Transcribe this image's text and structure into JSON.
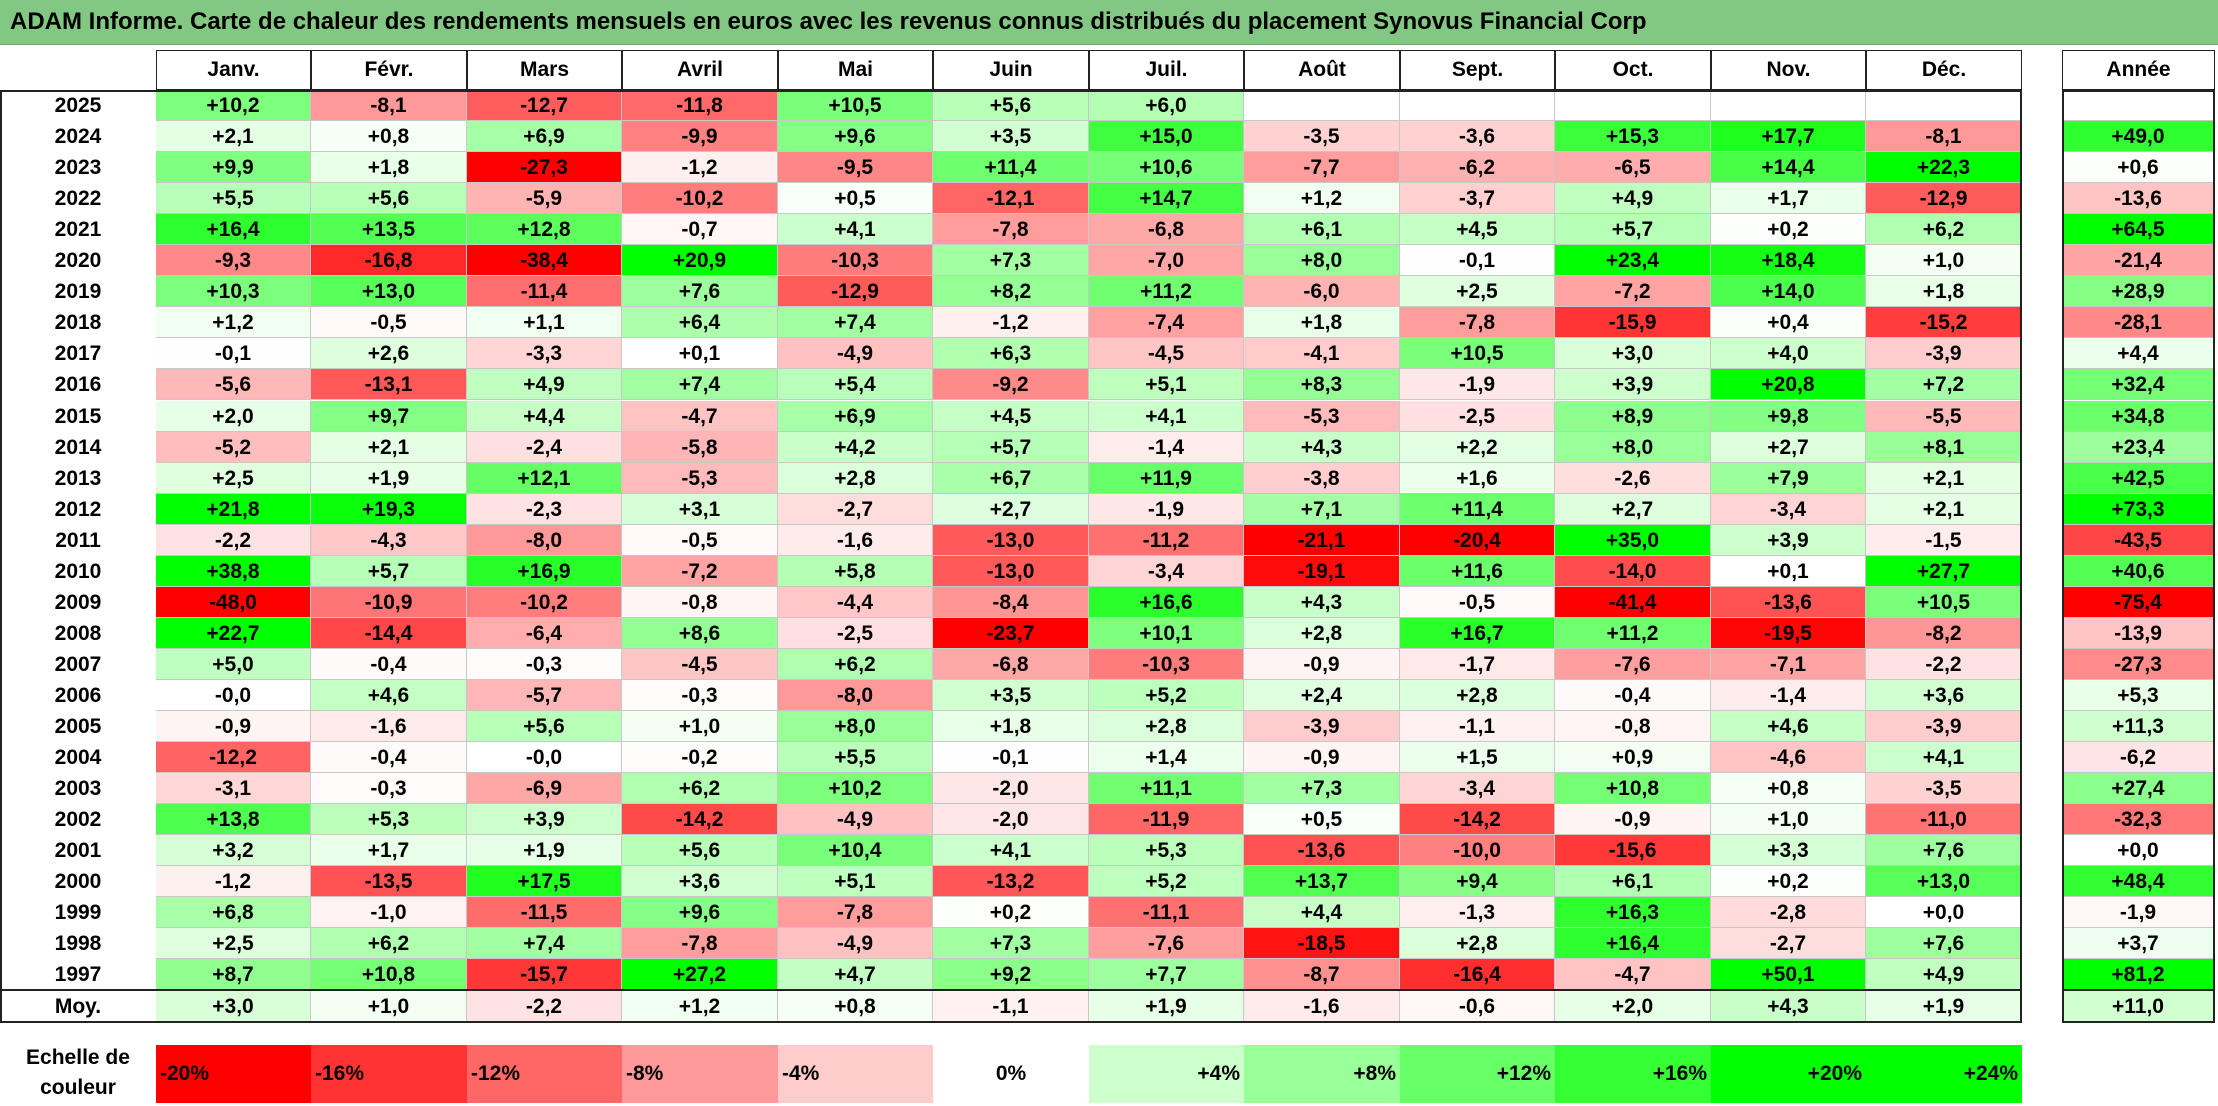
{
  "title": "ADAM Informe. Carte de chaleur des rendements mensuels en euros avec les revenus connus distribués du placement Synovus Financial Corp",
  "colors": {
    "title_bg": "#82c882",
    "negative_max": "#ff0000",
    "neutral": "#ffffff",
    "positive_max": "#00ff00"
  },
  "chart_data": {
    "type": "heatmap",
    "columns": [
      "Janv.",
      "Févr.",
      "Mars",
      "Avril",
      "Mai",
      "Juin",
      "Juil.",
      "Août",
      "Sept.",
      "Oct.",
      "Nov.",
      "Déc."
    ],
    "annual_header": "Année",
    "rows": [
      {
        "year": "2025",
        "values": [
          "+10,2",
          "-8,1",
          "-12,7",
          "-11,8",
          "+10,5",
          "+5,6",
          "+6,0",
          "",
          "",
          "",
          "",
          ""
        ],
        "annual": ""
      },
      {
        "year": "2024",
        "values": [
          "+2,1",
          "+0,8",
          "+6,9",
          "-9,9",
          "+9,6",
          "+3,5",
          "+15,0",
          "-3,5",
          "-3,6",
          "+15,3",
          "+17,7",
          "-8,1"
        ],
        "annual": "+49,0"
      },
      {
        "year": "2023",
        "values": [
          "+9,9",
          "+1,8",
          "-27,3",
          "-1,2",
          "-9,5",
          "+11,4",
          "+10,6",
          "-7,7",
          "-6,2",
          "-6,5",
          "+14,4",
          "+22,3"
        ],
        "annual": "+0,6"
      },
      {
        "year": "2022",
        "values": [
          "+5,5",
          "+5,6",
          "-5,9",
          "-10,2",
          "+0,5",
          "-12,1",
          "+14,7",
          "+1,2",
          "-3,7",
          "+4,9",
          "+1,7",
          "-12,9"
        ],
        "annual": "-13,6"
      },
      {
        "year": "2021",
        "values": [
          "+16,4",
          "+13,5",
          "+12,8",
          "-0,7",
          "+4,1",
          "-7,8",
          "-6,8",
          "+6,1",
          "+4,5",
          "+5,7",
          "+0,2",
          "+6,2"
        ],
        "annual": "+64,5"
      },
      {
        "year": "2020",
        "values": [
          "-9,3",
          "-16,8",
          "-38,4",
          "+20,9",
          "-10,3",
          "+7,3",
          "-7,0",
          "+8,0",
          "-0,1",
          "+23,4",
          "+18,4",
          "+1,0"
        ],
        "annual": "-21,4"
      },
      {
        "year": "2019",
        "values": [
          "+10,3",
          "+13,0",
          "-11,4",
          "+7,6",
          "-12,9",
          "+8,2",
          "+11,2",
          "-6,0",
          "+2,5",
          "-7,2",
          "+14,0",
          "+1,8"
        ],
        "annual": "+28,9"
      },
      {
        "year": "2018",
        "values": [
          "+1,2",
          "-0,5",
          "+1,1",
          "+6,4",
          "+7,4",
          "-1,2",
          "-7,4",
          "+1,8",
          "-7,8",
          "-15,9",
          "+0,4",
          "-15,2"
        ],
        "annual": "-28,1"
      },
      {
        "year": "2017",
        "values": [
          "-0,1",
          "+2,6",
          "-3,3",
          "+0,1",
          "-4,9",
          "+6,3",
          "-4,5",
          "-4,1",
          "+10,5",
          "+3,0",
          "+4,0",
          "-3,9"
        ],
        "annual": "+4,4"
      },
      {
        "year": "2016",
        "values": [
          "-5,6",
          "-13,1",
          "+4,9",
          "+7,4",
          "+5,4",
          "-9,2",
          "+5,1",
          "+8,3",
          "-1,9",
          "+3,9",
          "+20,8",
          "+7,2"
        ],
        "annual": "+32,4"
      },
      {
        "year": "2015",
        "values": [
          "+2,0",
          "+9,7",
          "+4,4",
          "-4,7",
          "+6,9",
          "+4,5",
          "+4,1",
          "-5,3",
          "-2,5",
          "+8,9",
          "+9,8",
          "-5,5"
        ],
        "annual": "+34,8"
      },
      {
        "year": "2014",
        "values": [
          "-5,2",
          "+2,1",
          "-2,4",
          "-5,8",
          "+4,2",
          "+5,7",
          "-1,4",
          "+4,3",
          "+2,2",
          "+8,0",
          "+2,7",
          "+8,1"
        ],
        "annual": "+23,4"
      },
      {
        "year": "2013",
        "values": [
          "+2,5",
          "+1,9",
          "+12,1",
          "-5,3",
          "+2,8",
          "+6,7",
          "+11,9",
          "-3,8",
          "+1,6",
          "-2,6",
          "+7,9",
          "+2,1"
        ],
        "annual": "+42,5"
      },
      {
        "year": "2012",
        "values": [
          "+21,8",
          "+19,3",
          "-2,3",
          "+3,1",
          "-2,7",
          "+2,7",
          "-1,9",
          "+7,1",
          "+11,4",
          "+2,7",
          "-3,4",
          "+2,1"
        ],
        "annual": "+73,3"
      },
      {
        "year": "2011",
        "values": [
          "-2,2",
          "-4,3",
          "-8,0",
          "-0,5",
          "-1,6",
          "-13,0",
          "-11,2",
          "-21,1",
          "-20,4",
          "+35,0",
          "+3,9",
          "-1,5"
        ],
        "annual": "-43,5"
      },
      {
        "year": "2010",
        "values": [
          "+38,8",
          "+5,7",
          "+16,9",
          "-7,2",
          "+5,8",
          "-13,0",
          "-3,4",
          "-19,1",
          "+11,6",
          "-14,0",
          "+0,1",
          "+27,7"
        ],
        "annual": "+40,6"
      },
      {
        "year": "2009",
        "values": [
          "-48,0",
          "-10,9",
          "-10,2",
          "-0,8",
          "-4,4",
          "-8,4",
          "+16,6",
          "+4,3",
          "-0,5",
          "-41,4",
          "-13,6",
          "+10,5"
        ],
        "annual": "-75,4"
      },
      {
        "year": "2008",
        "values": [
          "+22,7",
          "-14,4",
          "-6,4",
          "+8,6",
          "-2,5",
          "-23,7",
          "+10,1",
          "+2,8",
          "+16,7",
          "+11,2",
          "-19,5",
          "-8,2"
        ],
        "annual": "-13,9"
      },
      {
        "year": "2007",
        "values": [
          "+5,0",
          "-0,4",
          "-0,3",
          "-4,5",
          "+6,2",
          "-6,8",
          "-10,3",
          "-0,9",
          "-1,7",
          "-7,6",
          "-7,1",
          "-2,2"
        ],
        "annual": "-27,3"
      },
      {
        "year": "2006",
        "values": [
          "-0,0",
          "+4,6",
          "-5,7",
          "-0,3",
          "-8,0",
          "+3,5",
          "+5,2",
          "+2,4",
          "+2,8",
          "-0,4",
          "-1,4",
          "+3,6"
        ],
        "annual": "+5,3"
      },
      {
        "year": "2005",
        "values": [
          "-0,9",
          "-1,6",
          "+5,6",
          "+1,0",
          "+8,0",
          "+1,8",
          "+2,8",
          "-3,9",
          "-1,1",
          "-0,8",
          "+4,6",
          "-3,9"
        ],
        "annual": "+11,3"
      },
      {
        "year": "2004",
        "values": [
          "-12,2",
          "-0,4",
          "-0,0",
          "-0,2",
          "+5,5",
          "-0,1",
          "+1,4",
          "-0,9",
          "+1,5",
          "+0,9",
          "-4,6",
          "+4,1"
        ],
        "annual": "-6,2"
      },
      {
        "year": "2003",
        "values": [
          "-3,1",
          "-0,3",
          "-6,9",
          "+6,2",
          "+10,2",
          "-2,0",
          "+11,1",
          "+7,3",
          "-3,4",
          "+10,8",
          "+0,8",
          "-3,5"
        ],
        "annual": "+27,4"
      },
      {
        "year": "2002",
        "values": [
          "+13,8",
          "+5,3",
          "+3,9",
          "-14,2",
          "-4,9",
          "-2,0",
          "-11,9",
          "+0,5",
          "-14,2",
          "-0,9",
          "+1,0",
          "-11,0"
        ],
        "annual": "-32,3"
      },
      {
        "year": "2001",
        "values": [
          "+3,2",
          "+1,7",
          "+1,9",
          "+5,6",
          "+10,4",
          "+4,1",
          "+5,3",
          "-13,6",
          "-10,0",
          "-15,6",
          "+3,3",
          "+7,6"
        ],
        "annual": "+0,0"
      },
      {
        "year": "2000",
        "values": [
          "-1,2",
          "-13,5",
          "+17,5",
          "+3,6",
          "+5,1",
          "-13,2",
          "+5,2",
          "+13,7",
          "+9,4",
          "+6,1",
          "+0,2",
          "+13,0"
        ],
        "annual": "+48,4"
      },
      {
        "year": "1999",
        "values": [
          "+6,8",
          "-1,0",
          "-11,5",
          "+9,6",
          "-7,8",
          "+0,2",
          "-11,1",
          "+4,4",
          "-1,3",
          "+16,3",
          "-2,8",
          "+0,0"
        ],
        "annual": "-1,9"
      },
      {
        "year": "1998",
        "values": [
          "+2,5",
          "+6,2",
          "+7,4",
          "-7,8",
          "-4,9",
          "+7,3",
          "-7,6",
          "-18,5",
          "+2,8",
          "+16,4",
          "-2,7",
          "+7,6"
        ],
        "annual": "+3,7"
      },
      {
        "year": "1997",
        "values": [
          "+8,7",
          "+10,8",
          "-15,7",
          "+27,2",
          "+4,7",
          "+9,2",
          "+7,7",
          "-8,7",
          "-16,4",
          "-4,7",
          "+50,1",
          "+4,9"
        ],
        "annual": "+81,2"
      }
    ],
    "average": {
      "label": "Moy.",
      "values": [
        "+3,0",
        "+1,0",
        "-2,2",
        "+1,2",
        "+0,8",
        "-1,1",
        "+1,9",
        "-1,6",
        "-0,6",
        "+2,0",
        "+4,3",
        "+1,9"
      ],
      "annual": "+11,0"
    },
    "scale": {
      "label_line1": "Echelle de",
      "label_line2": "couleur",
      "stops": [
        "-20%",
        "-16%",
        "-12%",
        "-8%",
        "-4%",
        "0%",
        "+4%",
        "+8%",
        "+12%",
        "+16%",
        "+20%",
        "+24%"
      ]
    }
  }
}
